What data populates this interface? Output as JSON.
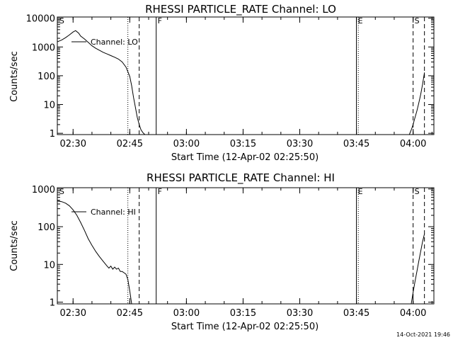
{
  "footer": {
    "timestamp": "14-Oct-2021 19:46"
  },
  "chart_data": [
    {
      "type": "line",
      "title": "RHESSI PARTICLE_RATE Channel: LO",
      "xlabel": "Start Time (12-Apr-02 02:25:50)",
      "ylabel": "Counts/sec",
      "yscale": "log",
      "xlim": [
        "02:25:50",
        "04:05:30"
      ],
      "ylim": [
        0.9,
        11000
      ],
      "x_ticks": [
        "02:30",
        "02:45",
        "03:00",
        "03:15",
        "03:30",
        "03:45",
        "04:00"
      ],
      "y_ticks": [
        "1",
        "10",
        "100",
        "1000",
        "10000"
      ],
      "legend": "Channel: LO",
      "markers": [
        {
          "label": "S",
          "time": "02:26:00",
          "style": "none"
        },
        {
          "label": "",
          "time": "02:44:30",
          "style": "dotted"
        },
        {
          "label": "",
          "time": "02:47:30",
          "style": "dashed"
        },
        {
          "label": "F",
          "time": "02:52:00",
          "style": "solid"
        },
        {
          "label": "E",
          "time": "03:45:00",
          "style": "solid"
        },
        {
          "label": "",
          "time": "03:45:30",
          "style": "dotted"
        },
        {
          "label": "S",
          "time": "04:00:00",
          "style": "dashed"
        },
        {
          "label": "",
          "time": "04:03:00",
          "style": "dashed"
        }
      ],
      "series": [
        {
          "name": "Channel: LO",
          "segments": [
            {
              "x": [
                "02:25:50",
                "02:27:00",
                "02:28:00",
                "02:29:00",
                "02:30:00",
                "02:30:40",
                "02:31:30",
                "02:32:00",
                "02:33:00",
                "02:34:00",
                "02:35:00",
                "02:36:00",
                "02:37:00",
                "02:38:00",
                "02:39:00",
                "02:40:00",
                "02:41:00",
                "02:42:00",
                "02:43:00",
                "02:44:00",
                "02:45:00",
                "02:45:30",
                "02:46:00",
                "02:46:30",
                "02:47:00",
                "02:47:30",
                "02:48:00",
                "02:48:30",
                "02:49:00"
              ],
              "y": [
                1500,
                1750,
                2100,
                2600,
                3300,
                3700,
                3000,
                2400,
                1900,
                1450,
                1100,
                900,
                760,
                650,
                570,
                500,
                440,
                380,
                300,
                200,
                95,
                45,
                18,
                8,
                3.5,
                2,
                1.3,
                1.05,
                0.9
              ]
            },
            {
              "x": [
                "03:59:00",
                "03:59:30",
                "04:00:00",
                "04:00:30",
                "04:01:00",
                "04:01:30",
                "04:02:00",
                "04:02:30",
                "04:03:00"
              ],
              "y": [
                0.9,
                1.3,
                2,
                3.5,
                6,
                11,
                22,
                50,
                130
              ]
            }
          ]
        }
      ]
    },
    {
      "type": "line",
      "title": "RHESSI PARTICLE_RATE Channel: HI",
      "xlabel": "Start Time (12-Apr-02 02:25:50)",
      "ylabel": "Counts/sec",
      "yscale": "log",
      "xlim": [
        "02:25:50",
        "04:05:30"
      ],
      "ylim": [
        0.9,
        1080
      ],
      "x_ticks": [
        "02:30",
        "02:45",
        "03:00",
        "03:15",
        "03:30",
        "03:45",
        "04:00"
      ],
      "y_ticks": [
        "1",
        "10",
        "100",
        "1000"
      ],
      "legend": "Channel: HI",
      "markers": [
        {
          "label": "S",
          "time": "02:26:00",
          "style": "none"
        },
        {
          "label": "",
          "time": "02:44:30",
          "style": "dotted"
        },
        {
          "label": "",
          "time": "02:47:30",
          "style": "dashed"
        },
        {
          "label": "F",
          "time": "02:52:00",
          "style": "solid"
        },
        {
          "label": "E",
          "time": "03:45:00",
          "style": "solid"
        },
        {
          "label": "",
          "time": "03:45:30",
          "style": "dotted"
        },
        {
          "label": "S",
          "time": "04:00:00",
          "style": "dashed"
        },
        {
          "label": "",
          "time": "04:03:00",
          "style": "dashed"
        }
      ],
      "series": [
        {
          "name": "Channel: HI",
          "segments": [
            {
              "x": [
                "02:25:50",
                "02:27:00",
                "02:28:00",
                "02:29:00",
                "02:30:00",
                "02:31:00",
                "02:32:00",
                "02:33:00",
                "02:34:00",
                "02:35:00",
                "02:36:00",
                "02:37:00",
                "02:38:00",
                "02:39:00",
                "02:39:30",
                "02:40:00",
                "02:40:30",
                "02:41:00",
                "02:41:30",
                "02:42:00",
                "02:42:30",
                "02:43:00",
                "02:43:30",
                "02:44:00",
                "02:44:30",
                "02:45:00",
                "02:45:30"
              ],
              "y": [
                480,
                460,
                420,
                360,
                280,
                200,
                130,
                80,
                48,
                32,
                22,
                16,
                12,
                9,
                8,
                9,
                7.5,
                8.5,
                7.5,
                8,
                6.5,
                6.5,
                6,
                5.5,
                4,
                2,
                0.9
              ]
            },
            {
              "x": [
                "03:59:30",
                "04:00:00",
                "04:00:30",
                "04:01:00",
                "04:01:30",
                "04:02:00",
                "04:02:30",
                "04:03:00"
              ],
              "y": [
                0.9,
                1.8,
                3.5,
                6.5,
                12,
                22,
                40,
                65
              ]
            }
          ]
        }
      ]
    }
  ]
}
